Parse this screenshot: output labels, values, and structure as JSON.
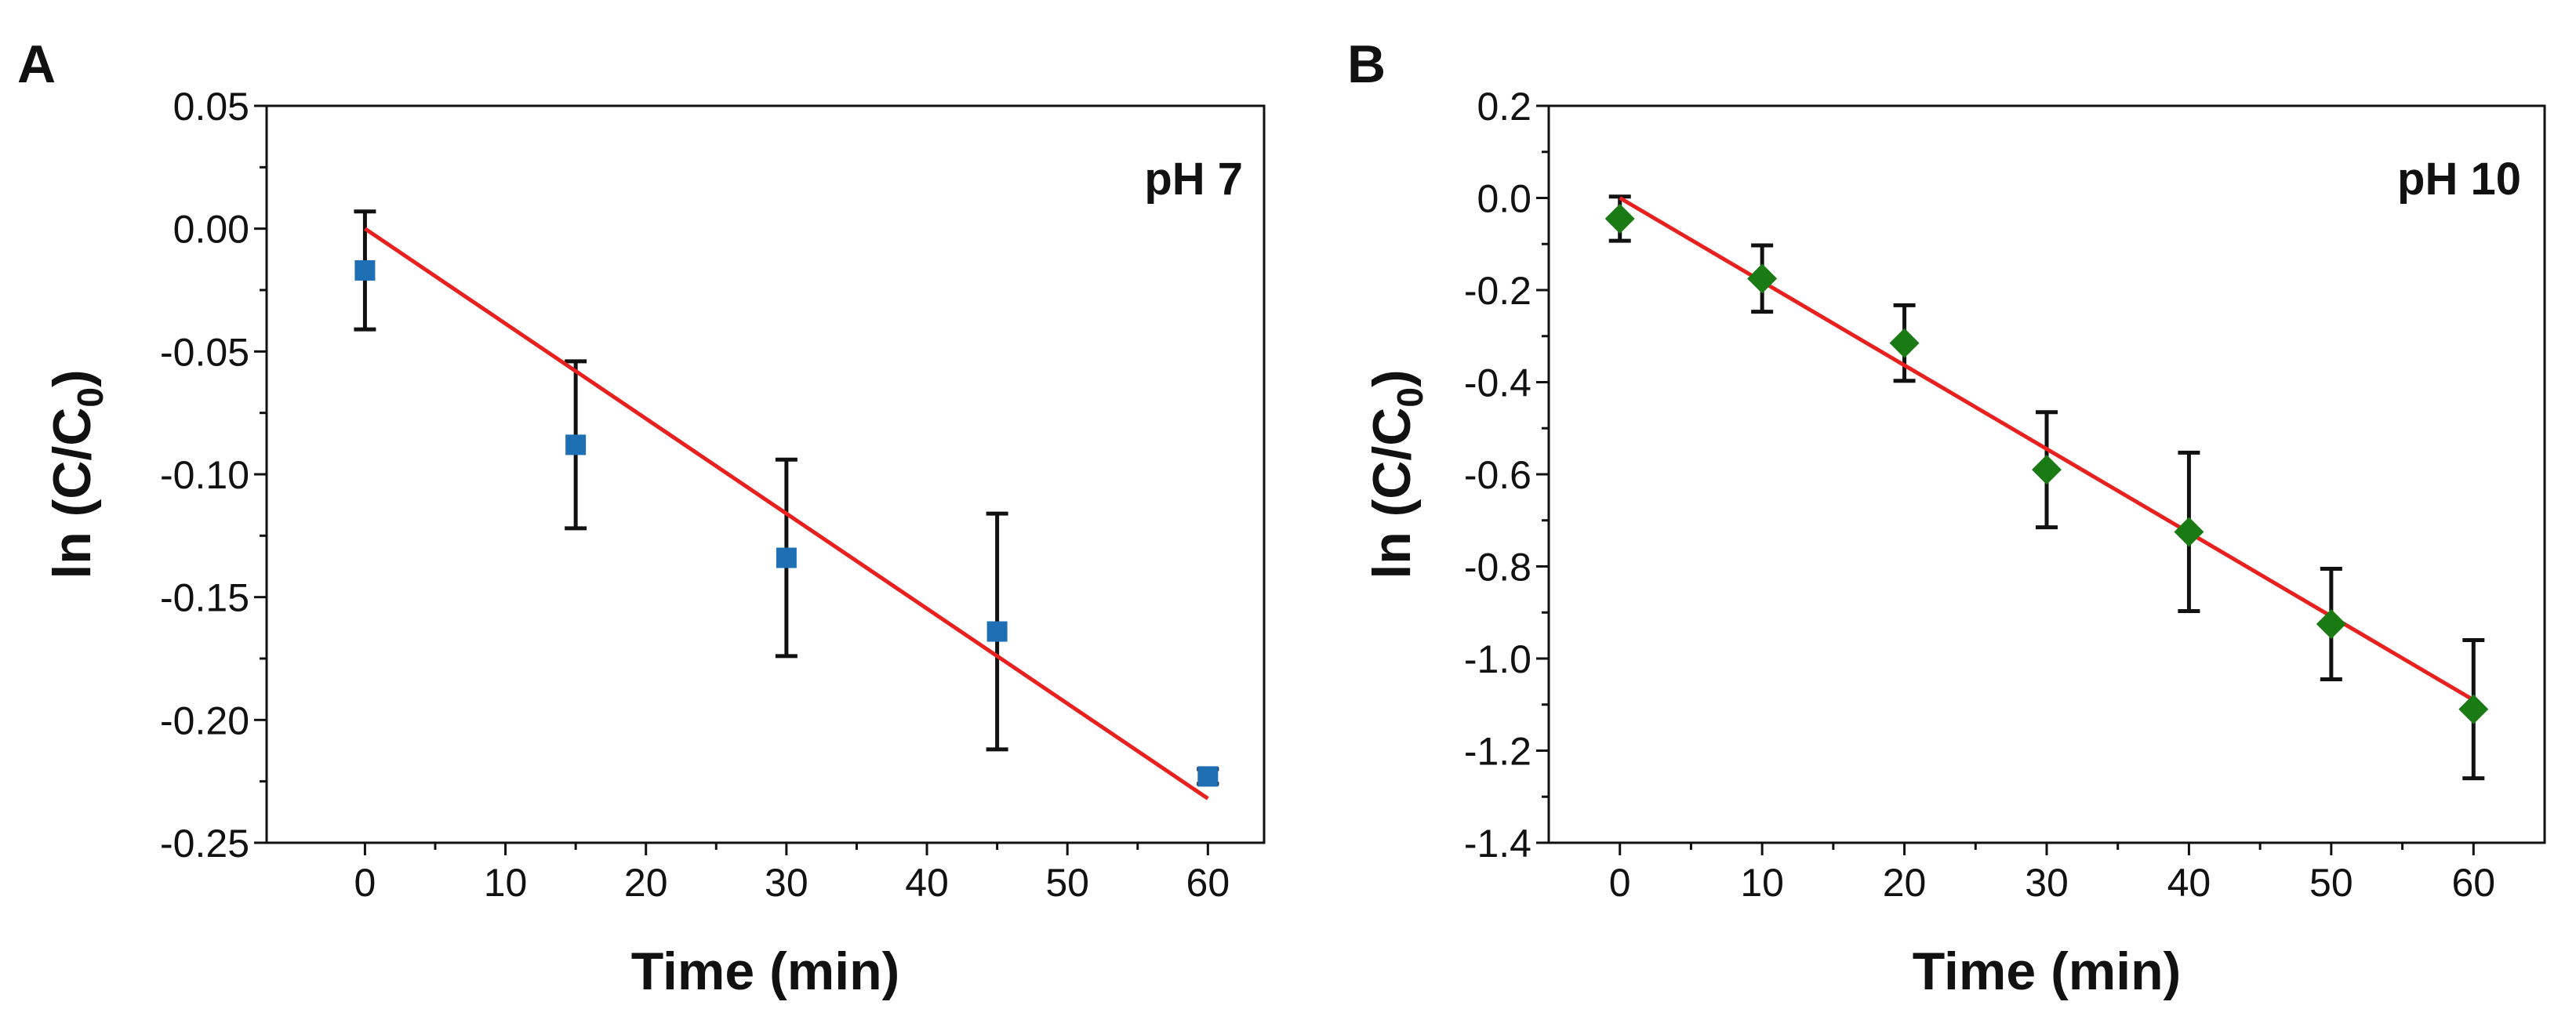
{
  "chart_data": [
    {
      "panel": "A",
      "type": "scatter",
      "annotation": "pH 7",
      "xlabel": "Time (min)",
      "ylabel_main": "ln (C/C",
      "ylabel_sub": "0",
      "ylabel_close": ")",
      "xlim": [
        -7,
        64
      ],
      "ylim": [
        -0.25,
        0.05
      ],
      "xticks": [
        0,
        10,
        20,
        30,
        40,
        50,
        60
      ],
      "xtick_labels": [
        "0",
        "10",
        "20",
        "30",
        "40",
        "50",
        "60"
      ],
      "yticks": [
        -0.25,
        -0.2,
        -0.15,
        -0.1,
        -0.05,
        0,
        0.05
      ],
      "ytick_labels": [
        "-0.25",
        "-0.20",
        "-0.15",
        "-0.10",
        "-0.05",
        "0.00",
        "0.05"
      ],
      "marker": "square",
      "marker_color": "#1f6fb4",
      "points": [
        {
          "x": 0,
          "y": -0.017,
          "err": 0.024
        },
        {
          "x": 15,
          "y": -0.088,
          "err": 0.034
        },
        {
          "x": 30,
          "y": -0.134,
          "err": 0.04
        },
        {
          "x": 45,
          "y": -0.164,
          "err": 0.048
        },
        {
          "x": 60,
          "y": -0.223,
          "err": 0.003
        }
      ],
      "fit": {
        "x": [
          0,
          60
        ],
        "y": [
          0,
          -0.232
        ],
        "color": "#e8201e"
      }
    },
    {
      "panel": "B",
      "type": "scatter",
      "annotation": "pH 10",
      "xlabel": "Time (min)",
      "ylabel_main": "ln (C/C",
      "ylabel_sub": "0",
      "ylabel_close": ")",
      "xlim": [
        -5,
        65
      ],
      "ylim": [
        -1.4,
        0.2
      ],
      "xticks": [
        0,
        10,
        20,
        30,
        40,
        50,
        60
      ],
      "xtick_labels": [
        "0",
        "10",
        "20",
        "30",
        "40",
        "50",
        "60"
      ],
      "yticks": [
        -1.4,
        -1.2,
        -1.0,
        -0.8,
        -0.6,
        -0.4,
        -0.2,
        0.0,
        0.2
      ],
      "ytick_labels": [
        "-1.4",
        "-1.2",
        "-1.0",
        "-0.8",
        "-0.6",
        "-0.4",
        "-0.2",
        "0.0",
        "0.2"
      ],
      "marker": "diamond",
      "marker_color": "#1a7a14",
      "points": [
        {
          "x": 0,
          "y": -0.045,
          "err": 0.048
        },
        {
          "x": 10,
          "y": -0.175,
          "err": 0.072
        },
        {
          "x": 20,
          "y": -0.315,
          "err": 0.082
        },
        {
          "x": 30,
          "y": -0.59,
          "err": 0.125
        },
        {
          "x": 40,
          "y": -0.725,
          "err": 0.172
        },
        {
          "x": 50,
          "y": -0.925,
          "err": 0.12
        },
        {
          "x": 60,
          "y": -1.11,
          "err": 0.15
        }
      ],
      "fit": {
        "x": [
          0,
          60
        ],
        "y": [
          0,
          -1.09
        ],
        "color": "#e8201e"
      }
    }
  ]
}
